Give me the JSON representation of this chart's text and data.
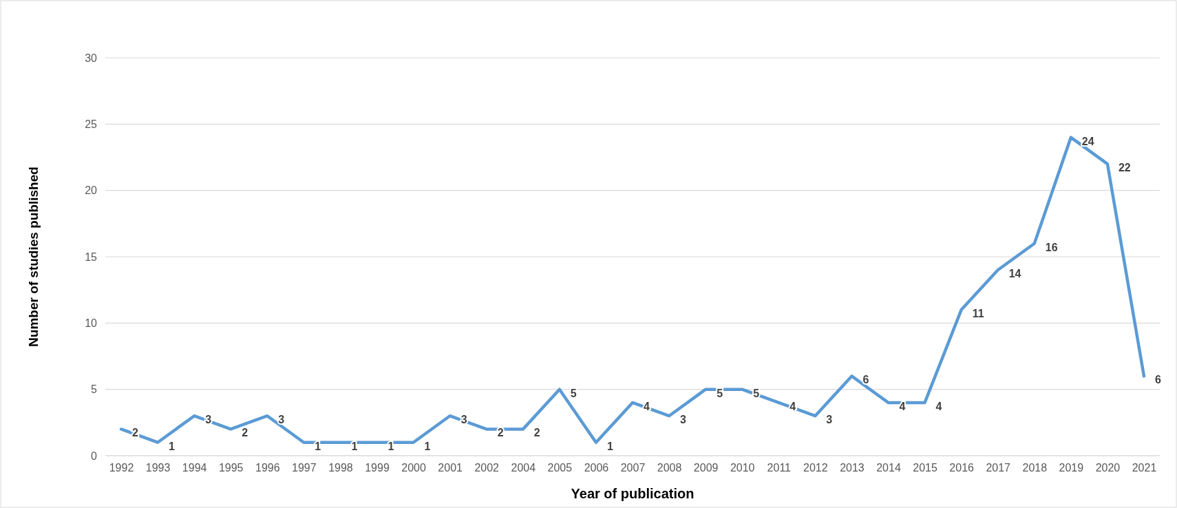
{
  "chart_data": {
    "type": "line",
    "xlabel": "Year of publication",
    "ylabel": "Number of studies published",
    "categories": [
      "1992",
      "1993",
      "1994",
      "1995",
      "1996",
      "1997",
      "1998",
      "1999",
      "2000",
      "2001",
      "2002",
      "2004",
      "2005",
      "2006",
      "2007",
      "2008",
      "2009",
      "2010",
      "2011",
      "2012",
      "2013",
      "2014",
      "2015",
      "2016",
      "2017",
      "2018",
      "2019",
      "2020",
      "2021"
    ],
    "series": [
      {
        "color": "#5b9bd5",
        "values": [
          2,
          1,
          3,
          2,
          3,
          1,
          1,
          1,
          1,
          3,
          2,
          2,
          5,
          1,
          4,
          3,
          5,
          5,
          4,
          3,
          6,
          4,
          4,
          11,
          14,
          16,
          24,
          22,
          6
        ]
      }
    ],
    "ylim": [
      0,
      30
    ],
    "yticks": [
      0,
      5,
      10,
      15,
      20,
      25,
      30
    ],
    "grid": "y",
    "data_labels": true,
    "marker": "none",
    "line_style": "solid"
  }
}
